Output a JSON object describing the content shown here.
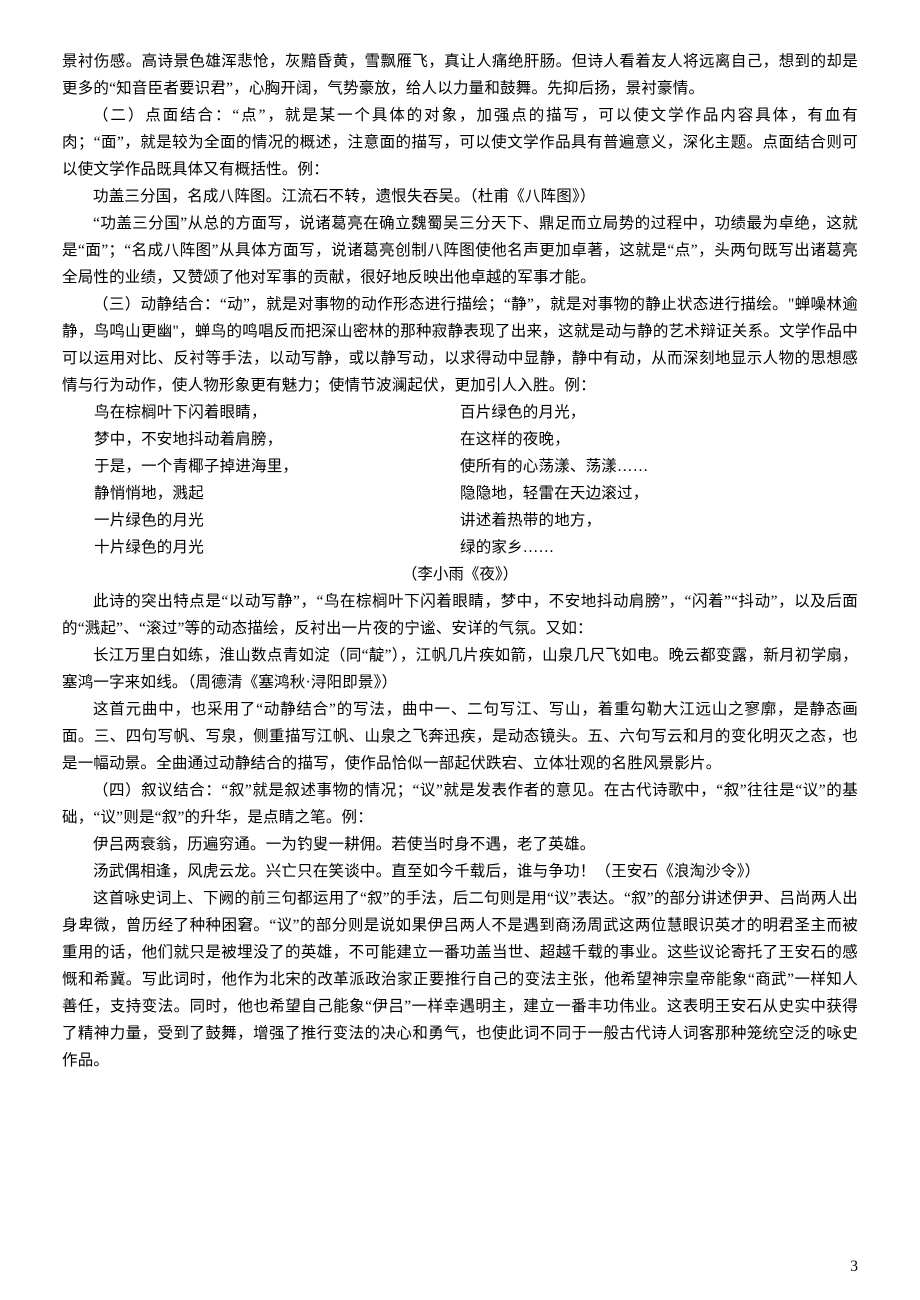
{
  "p1": "景衬伤感。高诗景色雄浑悲怆，灰黯昏黄，雪飘雁飞，真让人痛绝肝肠。但诗人看着友人将远离自己，想到的却是更多的“知音臣者要识君”，心胸开阔，气势豪放，给人以力量和鼓舞。先抑后扬，景衬豪情。",
  "p2": "（二）点面结合：“点”，就是某一个具体的对象，加强点的描写，可以使文学作品内容具体，有血有肉；“面”，就是较为全面的情况的概述，注意面的描写，可以使文学作品具有普遍意义，深化主题。点面结合则可以使文学作品既具体又有概括性。例：",
  "p3": "功盖三分国，名成八阵图。江流石不转，遗恨失吞吴。（杜甫《八阵图》）",
  "p4": "“功盖三分国”从总的方面写，说诸葛亮在确立魏蜀吴三分天下、鼎足而立局势的过程中，功绩最为卓绝，这就是“面”；“名成八阵图”从具体方面写，说诸葛亮创制八阵图使他名声更加卓著，这就是“点”，头两句既写出诸葛亮全局性的业绩，又赞颂了他对军事的贡献，很好地反映出他卓越的军事才能。",
  "p5": "（三）动静结合：“动”，就是对事物的动作形态进行描绘；“静”，就是对事物的静止状态进行描绘。\"蝉噪林逾静，鸟鸣山更幽\"，蝉鸟的鸣唱反而把深山密林的那种寂静表现了出来，这就是动与静的艺术辩证关系。文学作品中可以运用对比、反衬等手法，以动写静，或以静写动，以求得动中显静，静中有动，从而深刻地显示人物的思想感情与行为动作，使人物形象更有魅力；使情节波澜起伏，更加引人入胜。例：",
  "poemL": [
    "鸟在棕榈叶下闪着眼睛，",
    "梦中，不安地抖动着肩膀，",
    "于是，一个青椰子掉进海里，",
    "静悄悄地，溅起",
    "一片绿色的月光",
    "十片绿色的月光"
  ],
  "poemR": [
    "百片绿色的月光，",
    "在这样的夜晚，",
    "使所有的心荡漾、荡漾……",
    "隐隐地，轻雷在天边滚过，",
    "讲述着热带的地方，",
    "绿的家乡……"
  ],
  "poemAttrib": "（李小雨《夜》）",
  "p6": "此诗的突出特点是“以动写静”，“鸟在棕榈叶下闪着眼睛，梦中，不安地抖动肩膀”，“闪着”“抖动”，以及后面的“溅起”、“滚过”等的动态描绘，反衬出一片夜的宁谧、安详的气氛。又如：",
  "p7": "长江万里白如练，淮山数点青如淀（同“靛”），江帆几片疾如箭，山泉几尺飞如电。晚云都变露，新月初学扇，塞鸿一字来如线。（周德清《塞鸿秋·浔阳即景》）",
  "p8": "这首元曲中，也采用了“动静结合”的写法，曲中一、二句写江、写山，着重勾勒大江远山之寥廓，是静态画面。三、四句写帆、写泉，侧重描写江帆、山泉之飞奔迅疾，是动态镜头。五、六句写云和月的变化明灭之态，也是一幅动景。全曲通过动静结合的描写，使作品恰似一部起伏跌宕、立体壮观的名胜风景影片。",
  "p9": "（四）叙议结合：“叙”就是叙述事物的情况；“议”就是发表作者的意见。在古代诗歌中，“叙”往往是“议”的基础，“议”则是“叙”的升华，是点睛之笔。例：",
  "p10": "伊吕两衰翁，历遍穷通。一为钓叟一耕佣。若使当时身不遇，老了英雄。",
  "p11": "汤武偶相逢，风虎云龙。兴亡只在笑谈中。直至如今千载后，谁与争功！（王安石《浪淘沙令》）",
  "p12": "这首咏史词上、下阙的前三句都运用了“叙”的手法，后二句则是用“议”表达。“叙”的部分讲述伊尹、吕尚两人出身卑微，曾历经了种种困窘。“议”的部分则是说如果伊吕两人不是遇到商汤周武这两位慧眼识英才的明君圣主而被重用的话，他们就只是被埋没了的英雄，不可能建立一番功盖当世、超越千载的事业。这些议论寄托了王安石的感慨和希冀。写此词时，他作为北宋的改革派政治家正要推行自己的变法主张，他希望神宗皇帝能象“商武”一样知人善任，支持变法。同时，他也希望自己能象“伊吕”一样幸遇明主，建立一番丰功伟业。这表明王安石从史实中获得了精神力量，受到了鼓舞，增强了推行变法的决心和勇气，也使此词不同于一般古代诗人词客那种笼统空泛的咏史作品。",
  "pageNumber": "3"
}
